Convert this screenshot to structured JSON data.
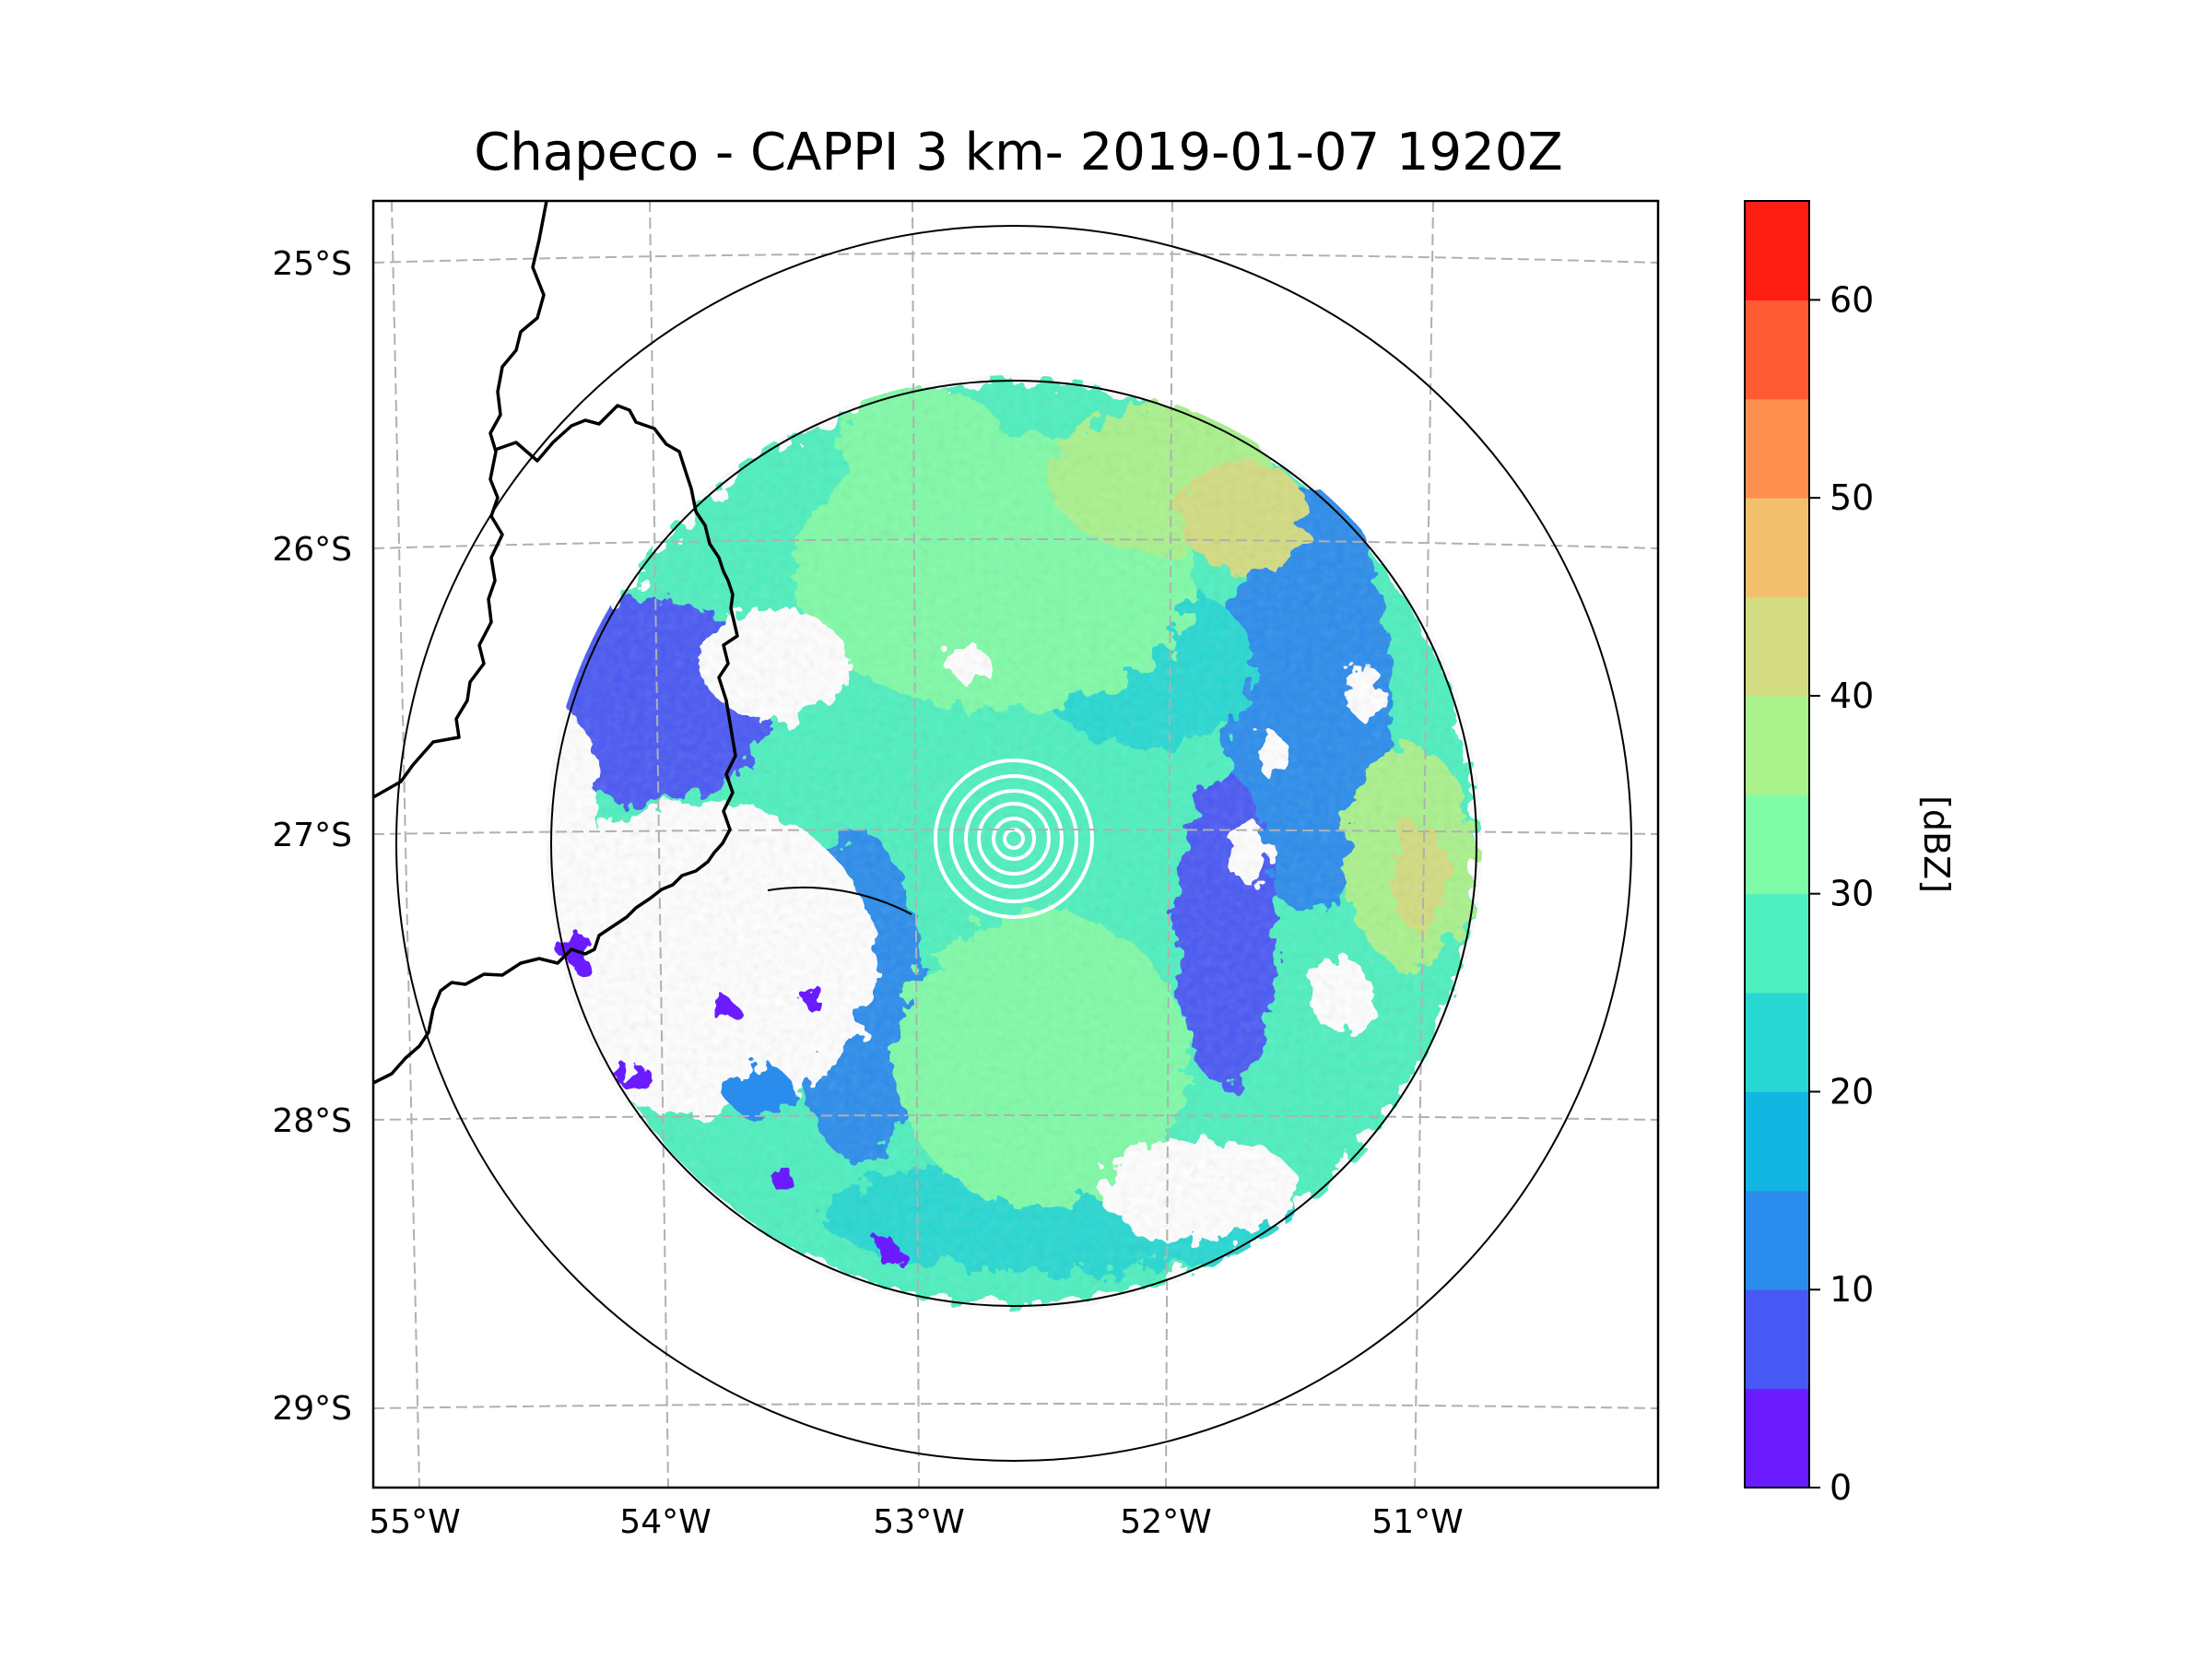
{
  "title": "Chapeco - CAPPI 3 km- 2019-01-07 1920Z",
  "map": {
    "lat_ticks": [
      "25°S",
      "26°S",
      "27°S",
      "28°S",
      "29°S"
    ],
    "lon_ticks": [
      "55°W",
      "54°W",
      "53°W",
      "52°W",
      "51°W"
    ],
    "gridline_color": "#b0b0b0",
    "coastline_color": "#000000",
    "range_ring_color": "#000000",
    "no_echo_color": "#ffffff"
  },
  "colorbar": {
    "label": "[dBZ]",
    "tick_labels": [
      "0",
      "10",
      "20",
      "30",
      "40",
      "50",
      "60"
    ],
    "min": 0,
    "max": 65,
    "step": 5,
    "colors": [
      "#6a1cff",
      "#4858f4",
      "#2a8cec",
      "#12b6e0",
      "#27d8d2",
      "#4ef0bf",
      "#7ffba7",
      "#a9f28c",
      "#d3dc80",
      "#f2bf6e",
      "#ff8f4f",
      "#ff5a34",
      "#ff1e14"
    ]
  }
}
